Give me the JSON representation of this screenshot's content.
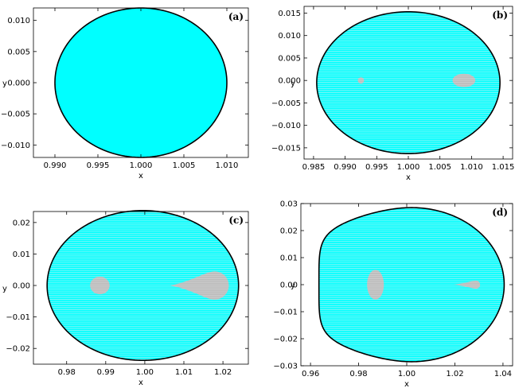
{
  "chart_data": [
    {
      "panel": "(a)",
      "type": "scatter",
      "xlabel": "x",
      "ylabel": "y",
      "xlim": [
        0.9875,
        1.0125
      ],
      "ylim": [
        -0.012,
        0.012
      ],
      "xticks": [
        0.99,
        0.995,
        1.0,
        1.005,
        1.01
      ],
      "xtick_labels": [
        "0.990",
        "0.995",
        "1.000",
        "1.005",
        "1.010"
      ],
      "yticks": [
        -0.01,
        -0.005,
        0.0,
        0.005,
        0.01
      ],
      "ytick_labels": [
        "−0.010",
        "−0.005",
        "0.000",
        "0.005",
        "0.010"
      ],
      "boundary": {
        "cx": 1.0,
        "rx": 0.01,
        "cy": 0.0,
        "ry": 0.012,
        "nose": 0
      },
      "hatched": false,
      "islands": [],
      "fill_color": "#00ffff",
      "island_color": "#bbbbbb"
    },
    {
      "panel": "(b)",
      "type": "scatter",
      "xlabel": "x",
      "ylabel": "y",
      "xlim": [
        0.9835,
        1.0165
      ],
      "ylim": [
        -0.0175,
        0.0165
      ],
      "xticks": [
        0.985,
        0.99,
        0.995,
        1.0,
        1.005,
        1.01,
        1.015
      ],
      "xtick_labels": [
        "0.985",
        "0.990",
        "0.995",
        "1.000",
        "1.005",
        "1.010",
        "1.015"
      ],
      "yticks": [
        -0.015,
        -0.01,
        -0.005,
        0.0,
        0.005,
        0.01,
        0.015
      ],
      "ytick_labels": [
        "−0.015",
        "−0.010",
        "−0.005",
        "0.000",
        "0.005",
        "0.010",
        "0.015"
      ],
      "boundary": {
        "cx": 1.0,
        "rx": 0.0145,
        "cy": -0.0005,
        "ry": 0.0158,
        "nose": 0
      },
      "hatched": true,
      "islands": [
        {
          "shape": "ellipse",
          "cx": 0.9925,
          "cy": 0.0,
          "rx": 0.0005,
          "ry": 0.0007
        },
        {
          "shape": "ellipse",
          "cx": 1.0088,
          "cy": 0.0,
          "rx": 0.0018,
          "ry": 0.0015
        }
      ],
      "fill_color": "#00ffff",
      "island_color": "#bbbbbb"
    },
    {
      "panel": "(c)",
      "type": "scatter",
      "xlabel": "x",
      "ylabel": "y",
      "xlim": [
        0.9715,
        1.0265
      ],
      "ylim": [
        -0.025,
        0.0235
      ],
      "xticks": [
        0.98,
        0.99,
        1.0,
        1.01,
        1.02
      ],
      "xtick_labels": [
        "0.98",
        "0.99",
        "1.00",
        "1.01",
        "1.02"
      ],
      "yticks": [
        -0.02,
        -0.01,
        0.0,
        0.01,
        0.02
      ],
      "ytick_labels": [
        "−0.02",
        "−0.01",
        "0.00",
        "0.01",
        "0.02"
      ],
      "boundary": {
        "cx": 0.9995,
        "rx": 0.0245,
        "cy": 0.0,
        "ry": 0.0238,
        "nose": 0
      },
      "hatched": true,
      "islands": [
        {
          "shape": "ellipse",
          "cx": 0.9885,
          "cy": 0.0,
          "rx": 0.0025,
          "ry": 0.0028
        },
        {
          "shape": "tear",
          "tip": 1.0065,
          "right": 1.0215,
          "cy": 0.0,
          "ry": 0.0045
        }
      ],
      "fill_color": "#00ffff",
      "island_color": "#bbbbbb"
    },
    {
      "panel": "(d)",
      "type": "scatter",
      "xlabel": "x",
      "ylabel": "y",
      "xlim": [
        0.956,
        1.044
      ],
      "ylim": [
        -0.03,
        0.03
      ],
      "xticks": [
        0.96,
        0.98,
        1.0,
        1.02,
        1.04
      ],
      "xtick_labels": [
        "0.96",
        "0.98",
        "1.00",
        "1.02",
        "1.04"
      ],
      "yticks": [
        -0.03,
        -0.02,
        -0.01,
        0.0,
        0.01,
        0.02,
        0.03
      ],
      "ytick_labels": [
        "−0.03",
        "−0.02",
        "−0.01",
        "0.00",
        "0.01",
        "0.02",
        "0.03"
      ],
      "boundary": {
        "cx": 1.002,
        "rx": 0.0385,
        "cy": 0.0,
        "ry": 0.0285,
        "nose": 0.55
      },
      "hatched": true,
      "islands": [
        {
          "shape": "ellipse",
          "cx": 0.987,
          "cy": 0.0,
          "rx": 0.0035,
          "ry": 0.0055
        },
        {
          "shape": "tear",
          "tip": 1.0195,
          "right": 1.0305,
          "cy": 0.0,
          "ry": 0.0015
        }
      ],
      "fill_color": "#00ffff",
      "island_color": "#bbbbbb"
    }
  ]
}
